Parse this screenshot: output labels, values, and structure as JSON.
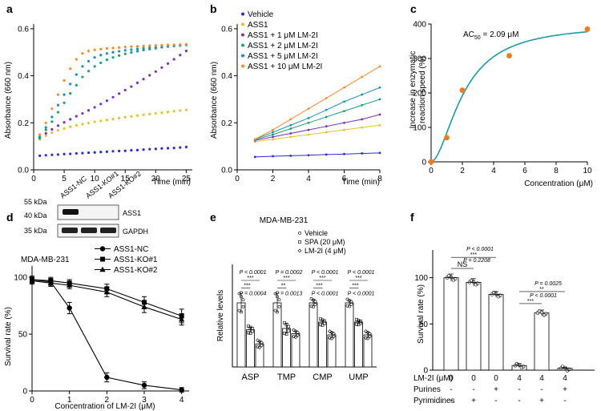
{
  "colors": {
    "vehicle": "#2b2bd6",
    "ass1": "#e8c12a",
    "lm1": "#7b2fbf",
    "lm2": "#1aa36e",
    "lm5": "#1b8fb8",
    "lm10": "#f58a2a",
    "fit": "#1a9aa8",
    "point": "#f07a1e",
    "black": "#000000"
  },
  "chart_data": [
    {
      "id": "a",
      "panel_label": "a",
      "type": "scatter",
      "xlabel": "Time (min)",
      "ylabel": "Absorbance (660 nm)",
      "xlim": [
        0,
        26
      ],
      "ylim": [
        0,
        0.62
      ],
      "xticks": [
        0,
        5,
        10,
        15,
        20,
        25
      ],
      "yticks": [
        0.0,
        0.2,
        0.4,
        0.6
      ],
      "ytick_labels": [
        "0.0",
        "0.2",
        "0.4",
        "0.6"
      ],
      "series": [
        {
          "color_key": "vehicle",
          "x": [
            1,
            2,
            3,
            4,
            5,
            6,
            7,
            8,
            9,
            10,
            11,
            12,
            13,
            14,
            15,
            16,
            17,
            18,
            19,
            20,
            21,
            22,
            23,
            24,
            25
          ],
          "y": [
            0.06,
            0.062,
            0.064,
            0.065,
            0.067,
            0.068,
            0.07,
            0.071,
            0.073,
            0.074,
            0.076,
            0.077,
            0.079,
            0.08,
            0.081,
            0.083,
            0.084,
            0.086,
            0.088,
            0.089,
            0.091,
            0.092,
            0.093,
            0.095,
            0.097
          ]
        },
        {
          "color_key": "ass1",
          "x": [
            1,
            2,
            3,
            4,
            5,
            6,
            7,
            8,
            9,
            10,
            11,
            12,
            13,
            14,
            15,
            16,
            17,
            18,
            19,
            20,
            21,
            22,
            23,
            24,
            25
          ],
          "y": [
            0.13,
            0.145,
            0.158,
            0.168,
            0.176,
            0.183,
            0.189,
            0.194,
            0.199,
            0.204,
            0.208,
            0.212,
            0.216,
            0.22,
            0.224,
            0.227,
            0.231,
            0.234,
            0.237,
            0.24,
            0.243,
            0.246,
            0.249,
            0.252,
            0.255
          ]
        },
        {
          "color_key": "lm1",
          "x": [
            1,
            2,
            3,
            4,
            5,
            6,
            7,
            8,
            9,
            10,
            11,
            12,
            13,
            14,
            15,
            16,
            17,
            18,
            19,
            20,
            21,
            22,
            23,
            24,
            25
          ],
          "y": [
            0.135,
            0.155,
            0.172,
            0.188,
            0.202,
            0.215,
            0.228,
            0.24,
            0.253,
            0.266,
            0.28,
            0.294,
            0.309,
            0.324,
            0.339,
            0.354,
            0.37,
            0.386,
            0.402,
            0.418,
            0.435,
            0.452,
            0.47,
            0.488,
            0.506
          ]
        },
        {
          "color_key": "lm2",
          "x": [
            1,
            2,
            3,
            4,
            5,
            6,
            7,
            8,
            9,
            10,
            11,
            12,
            13,
            14,
            15,
            16,
            17,
            18,
            19,
            20,
            21,
            22,
            23,
            24,
            25
          ],
          "y": [
            0.135,
            0.17,
            0.205,
            0.245,
            0.285,
            0.325,
            0.36,
            0.395,
            0.42,
            0.44,
            0.455,
            0.468,
            0.478,
            0.486,
            0.493,
            0.499,
            0.504,
            0.509,
            0.513,
            0.517,
            0.521,
            0.524,
            0.527,
            0.53,
            0.532
          ]
        },
        {
          "color_key": "lm5",
          "x": [
            1,
            2,
            3,
            4,
            5,
            6,
            7,
            8,
            9,
            10,
            11,
            12,
            13,
            14,
            15,
            16,
            17,
            18,
            19,
            20,
            21,
            22,
            23,
            24,
            25
          ],
          "y": [
            0.14,
            0.18,
            0.225,
            0.275,
            0.32,
            0.365,
            0.405,
            0.44,
            0.462,
            0.478,
            0.488,
            0.495,
            0.5,
            0.504,
            0.508,
            0.511,
            0.514,
            0.517,
            0.519,
            0.521,
            0.523,
            0.525,
            0.527,
            0.529,
            0.531
          ]
        },
        {
          "color_key": "lm10",
          "x": [
            1,
            2,
            3,
            4,
            5,
            6,
            7,
            8,
            9,
            10,
            11,
            12,
            13,
            14,
            15,
            16,
            17,
            18,
            19,
            20,
            21,
            22,
            23,
            24,
            25
          ],
          "y": [
            0.15,
            0.2,
            0.26,
            0.32,
            0.38,
            0.43,
            0.47,
            0.495,
            0.505,
            0.51,
            0.513,
            0.516,
            0.518,
            0.52,
            0.522,
            0.524,
            0.525,
            0.527,
            0.528,
            0.529,
            0.53,
            0.531,
            0.532,
            0.533,
            0.534
          ]
        }
      ]
    },
    {
      "id": "b",
      "panel_label": "b",
      "type": "line",
      "xlabel": "Time (min)",
      "ylabel": "Absorbance (660 nm)",
      "xlim": [
        0,
        8
      ],
      "ylim": [
        0,
        0.62
      ],
      "xticks": [
        0,
        2,
        4,
        6,
        8
      ],
      "yticks": [
        0.0,
        0.2,
        0.4,
        0.6
      ],
      "ytick_labels": [
        "0.0",
        "0.2",
        "0.4",
        "0.6"
      ],
      "legend": [
        "Vehicle",
        "ASS1",
        "ASS1 + 1 μM LM-2I",
        "ASS1 + 2 μM LM-2I",
        "ASS1 + 5 μM LM-2I",
        "ASS1 + 10 μM LM-2I"
      ],
      "legend_color_keys": [
        "vehicle",
        "ass1",
        "lm1",
        "lm2",
        "lm5",
        "lm10"
      ],
      "series": [
        {
          "name": "Vehicle",
          "color_key": "vehicle",
          "x": [
            1,
            2,
            3,
            4,
            5,
            6,
            7,
            8
          ],
          "y": [
            0.055,
            0.058,
            0.06,
            0.062,
            0.065,
            0.067,
            0.07,
            0.072
          ]
        },
        {
          "name": "ASS1",
          "color_key": "ass1",
          "x": [
            1,
            2,
            3,
            4,
            5,
            6,
            7,
            8
          ],
          "y": [
            0.12,
            0.13,
            0.14,
            0.15,
            0.16,
            0.17,
            0.18,
            0.19
          ]
        },
        {
          "name": "ASS1 + 1 μM LM-2I",
          "color_key": "lm1",
          "x": [
            1,
            2,
            3,
            4,
            5,
            6,
            7,
            8
          ],
          "y": [
            0.125,
            0.14,
            0.155,
            0.17,
            0.185,
            0.2,
            0.215,
            0.235
          ]
        },
        {
          "name": "ASS1 + 2 μM LM-2I",
          "color_key": "lm2",
          "x": [
            1,
            2,
            3,
            4,
            5,
            6,
            7,
            8
          ],
          "y": [
            0.128,
            0.15,
            0.175,
            0.2,
            0.225,
            0.25,
            0.275,
            0.3
          ]
        },
        {
          "name": "ASS1 + 5 μM LM-2I",
          "color_key": "lm5",
          "x": [
            1,
            2,
            3,
            4,
            5,
            6,
            7,
            8
          ],
          "y": [
            0.13,
            0.16,
            0.19,
            0.22,
            0.255,
            0.29,
            0.32,
            0.35
          ]
        },
        {
          "name": "ASS1 + 10 μM LM-2I",
          "color_key": "lm10",
          "x": [
            1,
            2,
            3,
            4,
            5,
            6,
            7,
            8
          ],
          "y": [
            0.13,
            0.17,
            0.215,
            0.26,
            0.305,
            0.35,
            0.395,
            0.44
          ]
        }
      ]
    },
    {
      "id": "c",
      "panel_label": "c",
      "type": "scatter",
      "xlabel": "Concentration (μM)",
      "ylabel_lines": [
        "Increase in enzymatic",
        "reaction speed (%)"
      ],
      "annotation_main": "AC",
      "annotation_sub": "50",
      "annotation_rest": " = 2.09 μM",
      "xlim": [
        0,
        10
      ],
      "ylim": [
        0,
        400
      ],
      "xticks": [
        0,
        2,
        4,
        6,
        8,
        10
      ],
      "yticks": [
        0,
        100,
        200,
        300,
        400
      ],
      "points": {
        "x": [
          0,
          1,
          2,
          5,
          10
        ],
        "y": [
          0,
          70,
          208,
          308,
          385
        ]
      },
      "fit": {
        "bottom": 0,
        "top": 400,
        "ac50": 2.09,
        "hill": 1.8
      }
    },
    {
      "id": "d",
      "panel_label": "d",
      "type": "line",
      "title": "MDA-MB-231",
      "xlabel": "Concentration of LM-2I (μM)",
      "ylabel": "Survival rate (%)",
      "xlim": [
        0,
        4.2
      ],
      "ylim": [
        0,
        110
      ],
      "xticks": [
        0,
        1,
        2,
        3,
        4
      ],
      "yticks": [
        0,
        50,
        100
      ],
      "legend": [
        "ASS1-NC",
        "ASS1-KO#1",
        "ASS1-KO#2"
      ],
      "series": [
        {
          "name": "ASS1-NC",
          "marker": "circle",
          "x": [
            0,
            0.5,
            1,
            2,
            3,
            4
          ],
          "y": [
            98,
            96,
            73,
            12,
            5,
            1
          ],
          "err": [
            3,
            3,
            5,
            4,
            3,
            2
          ]
        },
        {
          "name": "ASS1-KO#1",
          "marker": "square",
          "x": [
            0,
            0.5,
            1,
            2,
            3,
            4
          ],
          "y": [
            98,
            97,
            95,
            90,
            78,
            66
          ],
          "err": [
            3,
            3,
            3,
            4,
            5,
            6
          ]
        },
        {
          "name": "ASS1-KO#2",
          "marker": "triangle",
          "x": [
            0,
            0.5,
            1,
            2,
            3,
            4
          ],
          "y": [
            97,
            95,
            93,
            87,
            74,
            63
          ],
          "err": [
            3,
            3,
            3,
            4,
            5,
            5
          ]
        }
      ],
      "blot": {
        "lanes": [
          "ASS1-NC",
          "ASS1-KO#1",
          "ASS1-KO#2"
        ],
        "markers": [
          "55 kDa",
          "40 kDa",
          "35 kDa"
        ],
        "bands": [
          "ASS1",
          "GAPDH"
        ]
      }
    },
    {
      "id": "e",
      "panel_label": "e",
      "type": "bar",
      "title": "MDA-MB-231",
      "ylabel": "Relative levels",
      "categories": [
        "ASP",
        "TMP",
        "CMP",
        "UMP"
      ],
      "legend": [
        "Vehicle",
        "SPA (20 μM)",
        "LM-2I (4 μM)"
      ],
      "ylim": [
        0,
        1.6
      ],
      "series": [
        {
          "name": "Vehicle",
          "values": [
            1.0,
            1.0,
            1.0,
            1.0
          ],
          "err": [
            0.15,
            0.15,
            0.05,
            0.04
          ]
        },
        {
          "name": "SPA (20 μM)",
          "values": [
            0.58,
            0.6,
            0.7,
            0.7
          ],
          "err": [
            0.04,
            0.08,
            0.03,
            0.02
          ]
        },
        {
          "name": "LM-2I (4 μM)",
          "values": [
            0.36,
            0.52,
            0.5,
            0.5
          ],
          "err": [
            0.04,
            0.04,
            0.04,
            0.04
          ]
        }
      ],
      "annotations": [
        {
          "p1": "P < 0.0001",
          "p2": "P = 0.0004",
          "s1": "***",
          "s2": "***"
        },
        {
          "p1": "P = 0.0002",
          "p2": "P = 0.0013",
          "s1": "***",
          "s2": "**"
        },
        {
          "p1": "P < 0.0001",
          "p2": "P < 0.0001",
          "s1": "***",
          "s2": "***"
        },
        {
          "p1": "P < 0.0001",
          "p2": "P < 0.0001",
          "s1": "***",
          "s2": "***"
        }
      ]
    },
    {
      "id": "f",
      "panel_label": "f",
      "type": "bar",
      "ylabel": "Survival rate (%)",
      "ylim": [
        0,
        130
      ],
      "yticks": [
        0,
        50,
        100
      ],
      "values": [
        100,
        95,
        82,
        5,
        62,
        2
      ],
      "err": [
        4,
        4,
        3,
        2,
        3,
        1
      ],
      "row_labels": [
        "LM-2I (μM)",
        "Purines",
        "Pyrimidines"
      ],
      "rows": [
        [
          "0",
          "0",
          "0",
          "4",
          "4",
          "4"
        ],
        [
          "-",
          "-",
          "+",
          "-",
          "-",
          "+"
        ],
        [
          "-",
          "+",
          "-",
          "-",
          "+",
          "-"
        ]
      ],
      "annotations": {
        "ns": "NS",
        "p_ns": "P = 0.2208",
        "p_left": "P < 0.0001",
        "s_left": "***",
        "p_mid": "P < 0.0001",
        "s_mid": "***",
        "p_right": "P = 0.0025",
        "s_right": "**"
      }
    }
  ]
}
